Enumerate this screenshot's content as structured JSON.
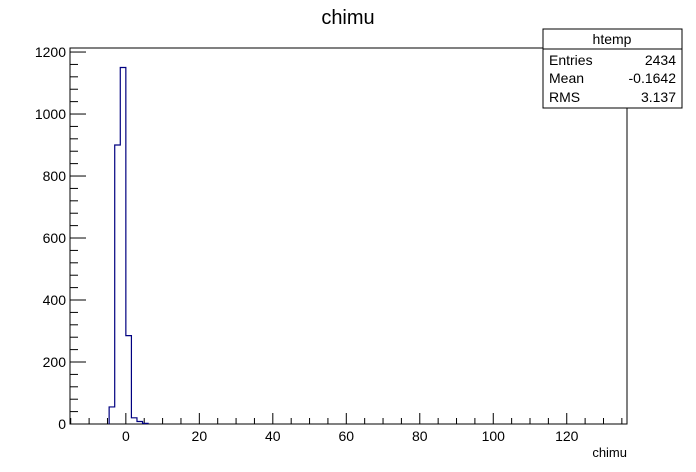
{
  "chart_data": {
    "type": "bar",
    "title": "chimu",
    "xlabel": "chimu",
    "ylabel": "",
    "xlim": [
      -15.2,
      136.4
    ],
    "ylim": [
      0,
      1213
    ],
    "bin_width": 1.515,
    "bins": [
      {
        "x": -3.79,
        "value": 55
      },
      {
        "x": -2.27,
        "value": 900
      },
      {
        "x": -0.76,
        "value": 1150
      },
      {
        "x": 0.76,
        "value": 285
      },
      {
        "x": 2.27,
        "value": 20
      },
      {
        "x": 3.79,
        "value": 8
      },
      {
        "x": 5.3,
        "value": 2
      }
    ],
    "x_ticks": [
      0,
      20,
      40,
      60,
      80,
      100,
      120
    ],
    "x_tick_labels": [
      "0",
      "20",
      "40",
      "60",
      "80",
      "100",
      "120"
    ],
    "y_ticks": [
      0,
      200,
      400,
      600,
      800,
      1000,
      1200
    ],
    "y_tick_labels": [
      "0",
      "200",
      "400",
      "600",
      "800",
      "1000",
      "1200"
    ],
    "line_color": "#000080"
  },
  "stats_box": {
    "title": "htemp",
    "rows": [
      {
        "label": "Entries",
        "value": "2434"
      },
      {
        "label": "Mean",
        "value": "-0.1642"
      },
      {
        "label": "RMS",
        "value": "3.137"
      }
    ]
  }
}
